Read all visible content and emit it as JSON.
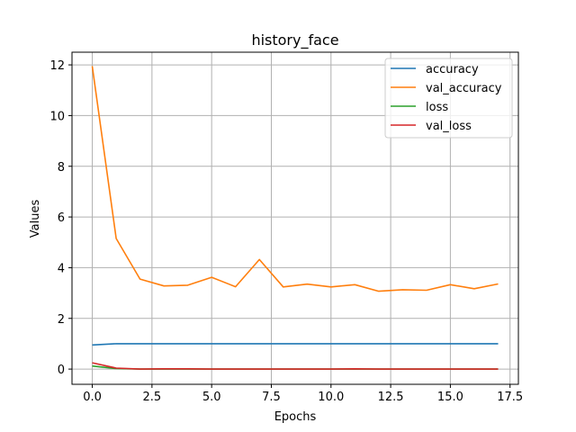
{
  "chart_data": {
    "type": "line",
    "title": "history_face",
    "xlabel": "Epochs",
    "ylabel": "Values",
    "xlim": [
      -0.85,
      17.85
    ],
    "ylim": [
      -0.6,
      12.5
    ],
    "xticks": [
      0.0,
      2.5,
      5.0,
      7.5,
      10.0,
      12.5,
      15.0,
      17.5
    ],
    "xtick_labels": [
      "0.0",
      "2.5",
      "5.0",
      "7.5",
      "10.0",
      "12.5",
      "15.0",
      "17.5"
    ],
    "yticks": [
      0,
      2,
      4,
      6,
      8,
      10,
      12
    ],
    "ytick_labels": [
      "0",
      "2",
      "4",
      "6",
      "8",
      "10",
      "12"
    ],
    "grid": true,
    "legend_position": "top-right",
    "x": [
      0,
      1,
      2,
      3,
      4,
      5,
      6,
      7,
      8,
      9,
      10,
      11,
      12,
      13,
      14,
      15,
      16,
      17
    ],
    "series": [
      {
        "name": "accuracy",
        "color": "#1f77b4",
        "values": [
          0.95,
          1.0,
          1.0,
          1.0,
          1.0,
          1.0,
          1.0,
          1.0,
          1.0,
          1.0,
          1.0,
          1.0,
          1.0,
          1.0,
          1.0,
          1.0,
          1.0,
          1.0
        ]
      },
      {
        "name": "val_accuracy",
        "color": "#ff7f0e",
        "values": [
          11.95,
          5.15,
          3.55,
          3.28,
          3.31,
          3.62,
          3.25,
          4.32,
          3.24,
          3.35,
          3.24,
          3.33,
          3.07,
          3.13,
          3.11,
          3.33,
          3.17,
          3.36
        ]
      },
      {
        "name": "loss",
        "color": "#2ca02c",
        "values": [
          0.12,
          0.02,
          0.0,
          0.0,
          0.0,
          0.0,
          0.0,
          0.0,
          0.0,
          0.0,
          0.0,
          0.0,
          0.0,
          0.0,
          0.0,
          0.0,
          0.0,
          0.0
        ]
      },
      {
        "name": "val_loss",
        "color": "#d62728",
        "values": [
          0.25,
          0.04,
          0.0,
          0.01,
          0.01,
          0.0,
          0.0,
          0.0,
          0.0,
          0.0,
          0.0,
          0.01,
          0.0,
          0.0,
          0.0,
          0.0,
          0.0,
          0.0
        ]
      }
    ]
  }
}
